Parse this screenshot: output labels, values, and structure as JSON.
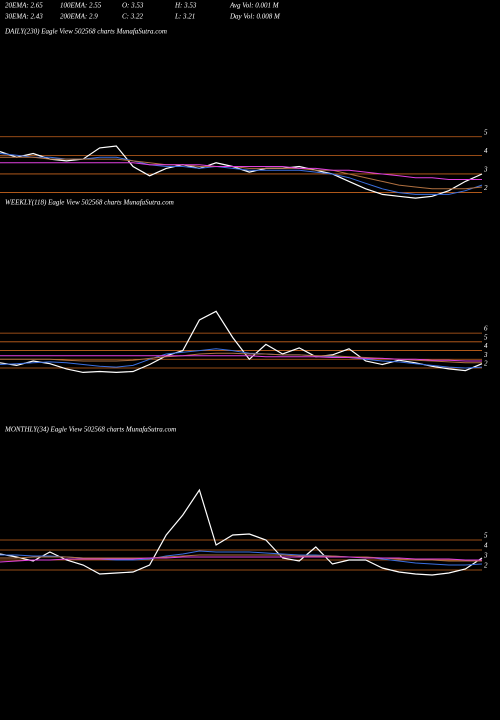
{
  "header": {
    "stats": [
      [
        "20EMA: 2.65",
        "100EMA: 2.55",
        "O: 3.53",
        "H: 3.53",
        "Avg Vol: 0.001 M"
      ],
      [
        "30EMA: 2.43",
        "200EMA: 2.9",
        "C: 3.22",
        "L: 3.21",
        "Day Vol: 0.008 M"
      ]
    ]
  },
  "chart_data": [
    {
      "type": "line",
      "title": "DAILY(230) Eagle  View  502568 charts MunafaSutra.com",
      "ylim": [
        1.6,
        10.2
      ],
      "yticks": [
        5,
        4,
        3,
        2
      ],
      "grid": true,
      "grid_color": "#c8641e",
      "series": [
        {
          "color": "#ffffff",
          "values": [
            4.2,
            3.9,
            4.1,
            3.8,
            3.7,
            3.8,
            4.4,
            4.5,
            3.4,
            2.9,
            3.3,
            3.5,
            3.3,
            3.6,
            3.4,
            3.1,
            3.3,
            3.3,
            3.4,
            3.2,
            3.0,
            2.6,
            2.2,
            1.9,
            1.8,
            1.7,
            1.8,
            2.1,
            2.6,
            3.0
          ]
        },
        {
          "color": "#3a6fe0",
          "values": [
            4.1,
            4.0,
            3.9,
            3.9,
            3.8,
            3.8,
            3.9,
            3.9,
            3.7,
            3.5,
            3.4,
            3.4,
            3.3,
            3.4,
            3.3,
            3.2,
            3.2,
            3.2,
            3.2,
            3.1,
            3.0,
            2.8,
            2.5,
            2.2,
            2.0,
            1.9,
            1.9,
            1.9,
            2.1,
            2.4
          ]
        },
        {
          "color": "#b07040",
          "values": [
            3.9,
            3.9,
            3.9,
            3.8,
            3.8,
            3.8,
            3.8,
            3.8,
            3.7,
            3.6,
            3.5,
            3.5,
            3.4,
            3.4,
            3.4,
            3.3,
            3.3,
            3.3,
            3.3,
            3.2,
            3.2,
            3.0,
            2.8,
            2.6,
            2.4,
            2.3,
            2.2,
            2.2,
            2.2,
            2.3
          ]
        },
        {
          "color": "#e040e0",
          "values": [
            3.6,
            3.6,
            3.6,
            3.6,
            3.6,
            3.6,
            3.6,
            3.6,
            3.6,
            3.5,
            3.5,
            3.5,
            3.5,
            3.4,
            3.4,
            3.4,
            3.4,
            3.4,
            3.3,
            3.3,
            3.2,
            3.2,
            3.1,
            3.0,
            2.9,
            2.8,
            2.8,
            2.7,
            2.7,
            2.7
          ]
        }
      ]
    },
    {
      "type": "line",
      "title": "WEEKLY(118) Eagle  View  502568 charts MunafaSutra.com",
      "ylim": [
        1.2,
        20.1
      ],
      "yticks": [
        6,
        5,
        4,
        3,
        2
      ],
      "grid": true,
      "grid_color": "#c8641e",
      "series": [
        {
          "color": "#ffffff",
          "values": [
            2.6,
            2.3,
            2.8,
            2.5,
            1.9,
            1.5,
            1.6,
            1.5,
            1.6,
            2.4,
            3.4,
            4.0,
            7.5,
            8.5,
            5.5,
            3.0,
            4.7,
            3.6,
            4.3,
            3.3,
            3.5,
            4.2,
            2.8,
            2.4,
            2.9,
            2.6,
            2.2,
            1.9,
            1.7,
            2.5
          ]
        },
        {
          "color": "#3a6fe0",
          "values": [
            2.4,
            2.5,
            2.6,
            2.7,
            2.6,
            2.4,
            2.2,
            2.1,
            2.3,
            3.0,
            3.6,
            3.8,
            4.0,
            4.2,
            4.0,
            3.7,
            3.6,
            3.5,
            3.5,
            3.4,
            3.3,
            3.2,
            3.0,
            2.8,
            2.7,
            2.5,
            2.3,
            2.1,
            2.0,
            2.1
          ]
        },
        {
          "color": "#b07040",
          "values": [
            3.0,
            3.0,
            3.0,
            3.0,
            2.9,
            2.8,
            2.8,
            2.8,
            2.9,
            3.1,
            3.3,
            3.4,
            3.6,
            3.7,
            3.7,
            3.6,
            3.6,
            3.5,
            3.5,
            3.4,
            3.4,
            3.3,
            3.2,
            3.1,
            3.0,
            2.9,
            2.8,
            2.7,
            2.6,
            2.6
          ]
        },
        {
          "color": "#e040e0",
          "values": [
            3.4,
            3.4,
            3.4,
            3.4,
            3.4,
            3.4,
            3.4,
            3.4,
            3.4,
            3.4,
            3.4,
            3.4,
            3.4,
            3.4,
            3.4,
            3.4,
            3.3,
            3.3,
            3.3,
            3.3,
            3.2,
            3.2,
            3.1,
            3.1,
            3.0,
            3.0,
            2.9,
            2.9,
            2.8,
            2.8
          ]
        }
      ]
    },
    {
      "type": "line",
      "title": "MONTHLY(34) Eagle  View  502568 charts MunafaSutra.com",
      "ylim": [
        1.5,
        15.3
      ],
      "yticks": [
        5,
        4,
        3,
        2
      ],
      "grid": true,
      "grid_color": "#c8641e",
      "series": [
        {
          "color": "#ffffff",
          "values": [
            3.6,
            3.3,
            2.9,
            3.8,
            3.0,
            2.5,
            1.6,
            1.7,
            1.8,
            2.5,
            5.5,
            7.5,
            10.0,
            4.5,
            5.5,
            5.6,
            5.0,
            3.2,
            2.9,
            4.3,
            2.6,
            3.0,
            3.0,
            2.2,
            1.8,
            1.6,
            1.5,
            1.7,
            2.1,
            3.2
          ]
        },
        {
          "color": "#3a6fe0",
          "values": [
            3.5,
            3.5,
            3.4,
            3.4,
            3.3,
            3.2,
            3.1,
            3.0,
            3.0,
            3.1,
            3.4,
            3.6,
            3.9,
            3.8,
            3.8,
            3.8,
            3.7,
            3.6,
            3.5,
            3.5,
            3.4,
            3.3,
            3.3,
            3.1,
            2.9,
            2.7,
            2.6,
            2.5,
            2.5,
            2.6
          ]
        },
        {
          "color": "#b07040",
          "values": [
            3.2,
            3.2,
            3.3,
            3.3,
            3.3,
            3.2,
            3.2,
            3.2,
            3.2,
            3.2,
            3.3,
            3.4,
            3.5,
            3.5,
            3.5,
            3.5,
            3.5,
            3.5,
            3.4,
            3.4,
            3.4,
            3.3,
            3.3,
            3.2,
            3.1,
            3.0,
            3.0,
            2.9,
            2.9,
            2.9
          ]
        },
        {
          "color": "#e040e0",
          "values": [
            2.8,
            2.9,
            3.0,
            3.0,
            3.1,
            3.1,
            3.1,
            3.1,
            3.1,
            3.2,
            3.2,
            3.3,
            3.3,
            3.3,
            3.3,
            3.3,
            3.3,
            3.3,
            3.3,
            3.3,
            3.3,
            3.3,
            3.2,
            3.2,
            3.2,
            3.1,
            3.1,
            3.1,
            3.0,
            3.0
          ]
        }
      ]
    }
  ]
}
